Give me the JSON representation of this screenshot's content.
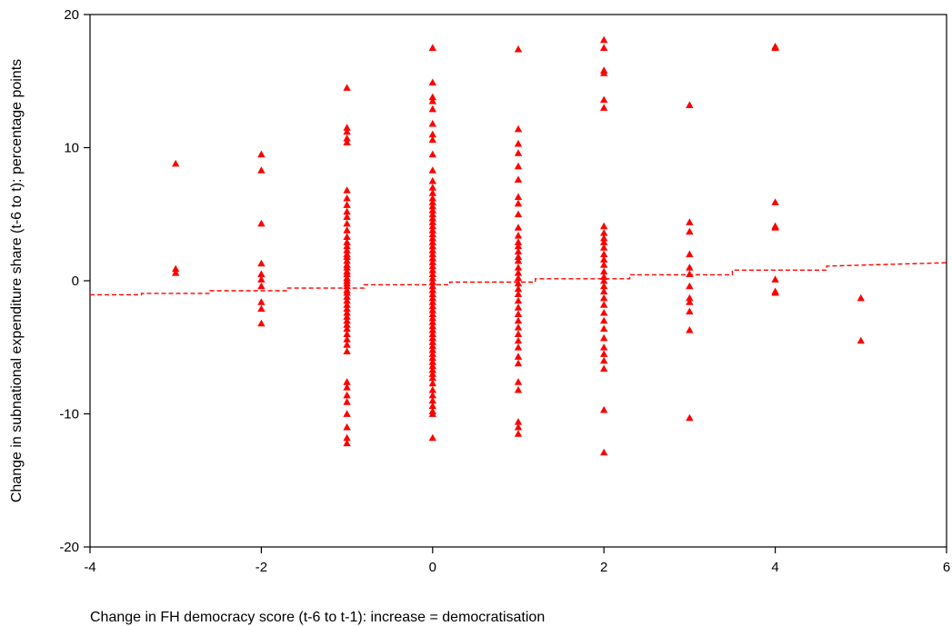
{
  "chart_data": {
    "type": "scatter",
    "title": "",
    "xlabel": "Change in FH democracy score (t-6 to t-1): increase = democratisation",
    "ylabel": "Change in subnational expenditure share (t-6 to t): percentage points",
    "xlim": [
      -4,
      6
    ],
    "ylim": [
      -20,
      20
    ],
    "xticks": [
      -4,
      -2,
      0,
      2,
      4,
      6
    ],
    "yticks": [
      -20,
      -10,
      0,
      10,
      20
    ],
    "grid": false,
    "legend": "none",
    "marker": "triangle",
    "colors": {
      "points": "#ff0000",
      "trend": "#ff0000",
      "axes": "#000000"
    },
    "series": [
      {
        "values": [
          {
            "x": -3,
            "y": [
              8.8,
              0.9,
              0.6
            ]
          },
          {
            "x": -2,
            "y": [
              9.5,
              8.3,
              4.3,
              1.3,
              0.5,
              0.1,
              -0.4,
              -1.6,
              -2.1,
              -3.2
            ]
          },
          {
            "x": -1,
            "y": [
              14.5,
              11.5,
              11.2,
              10.7,
              10.4,
              6.8,
              6.2,
              5.7,
              5.2,
              4.8,
              4.3,
              3.8,
              3.3,
              2.9,
              2.6,
              2.3,
              2.0,
              1.8,
              1.5,
              1.2,
              1.0,
              0.7,
              0.5,
              0.2,
              0.0,
              -0.2,
              -0.4,
              -0.7,
              -0.9,
              -1.2,
              -1.5,
              -1.8,
              -2.1,
              -2.4,
              -2.7,
              -3.0,
              -3.3,
              -3.6,
              -4.0,
              -4.4,
              -4.8,
              -5.3,
              -7.6,
              -8.0,
              -8.6,
              -9.1,
              -10.0,
              -11.0,
              -11.8,
              -12.2
            ]
          },
          {
            "x": 0,
            "y": [
              17.5,
              14.9,
              13.8,
              13.5,
              12.9,
              11.8,
              11.0,
              10.6,
              9.5,
              8.3,
              7.5,
              7.0,
              6.6,
              6.2,
              5.9,
              5.6,
              5.3,
              5.0,
              4.7,
              4.4,
              4.1,
              3.8,
              3.5,
              3.2,
              2.9,
              2.6,
              2.3,
              2.0,
              1.7,
              1.4,
              1.1,
              0.8,
              0.5,
              0.2,
              -0.1,
              -0.4,
              -0.7,
              -1.0,
              -1.3,
              -1.6,
              -1.9,
              -2.2,
              -2.5,
              -2.8,
              -3.1,
              -3.4,
              -3.7,
              -4.0,
              -4.3,
              -4.6,
              -4.9,
              -5.2,
              -5.5,
              -5.8,
              -6.1,
              -6.4,
              -6.7,
              -7.0,
              -7.3,
              -7.7,
              -8.2,
              -8.6,
              -9.0,
              -9.4,
              -9.8,
              -10.0,
              -11.8
            ]
          },
          {
            "x": 1,
            "y": [
              17.4,
              11.4,
              10.3,
              9.6,
              8.6,
              7.6,
              6.3,
              5.8,
              5.0,
              4.0,
              3.4,
              2.9,
              2.6,
              2.2,
              1.8,
              1.5,
              1.0,
              0.6,
              0.2,
              -0.2,
              -0.6,
              -1.0,
              -1.5,
              -2.0,
              -2.5,
              -3.0,
              -3.5,
              -4.0,
              -4.5,
              -5.0,
              -5.7,
              -6.2,
              -7.6,
              -8.2,
              -10.6,
              -11.0,
              -11.5
            ]
          },
          {
            "x": 2,
            "y": [
              18.1,
              17.5,
              15.8,
              15.6,
              13.6,
              13.0,
              4.1,
              3.6,
              3.2,
              2.9,
              2.5,
              2.0,
              1.6,
              1.2,
              0.7,
              0.3,
              0.0,
              -0.4,
              -0.8,
              -1.3,
              -1.8,
              -2.4,
              -3.0,
              -3.6,
              -4.3,
              -5.0,
              -5.5,
              -6.0,
              -6.6,
              -9.7,
              -12.9
            ]
          },
          {
            "x": 3,
            "y": [
              13.2,
              4.4,
              3.7,
              2.0,
              1.0,
              0.5,
              -0.4,
              -1.3,
              -1.6,
              -2.3,
              -3.7,
              -10.3
            ]
          },
          {
            "x": 4,
            "y": [
              17.6,
              17.5,
              5.9,
              4.1,
              4.0,
              0.1,
              -0.8,
              -0.9
            ]
          },
          {
            "x": 5,
            "y": [
              -1.3,
              -4.5
            ]
          }
        ]
      }
    ],
    "trend_line": {
      "style": "dashed-step",
      "x": [
        -4,
        -3.4,
        -3.4,
        -2.6,
        -2.6,
        -1.7,
        -1.7,
        -0.8,
        -0.8,
        0.2,
        0.2,
        1.2,
        1.2,
        2.3,
        2.3,
        3.5,
        3.5,
        4.6,
        4.6,
        6
      ],
      "y": [
        -1.05,
        -1.05,
        -0.95,
        -0.95,
        -0.75,
        -0.75,
        -0.55,
        -0.55,
        -0.3,
        -0.3,
        -0.1,
        -0.1,
        0.15,
        0.15,
        0.45,
        0.45,
        0.8,
        0.8,
        1.1,
        1.35
      ]
    }
  }
}
